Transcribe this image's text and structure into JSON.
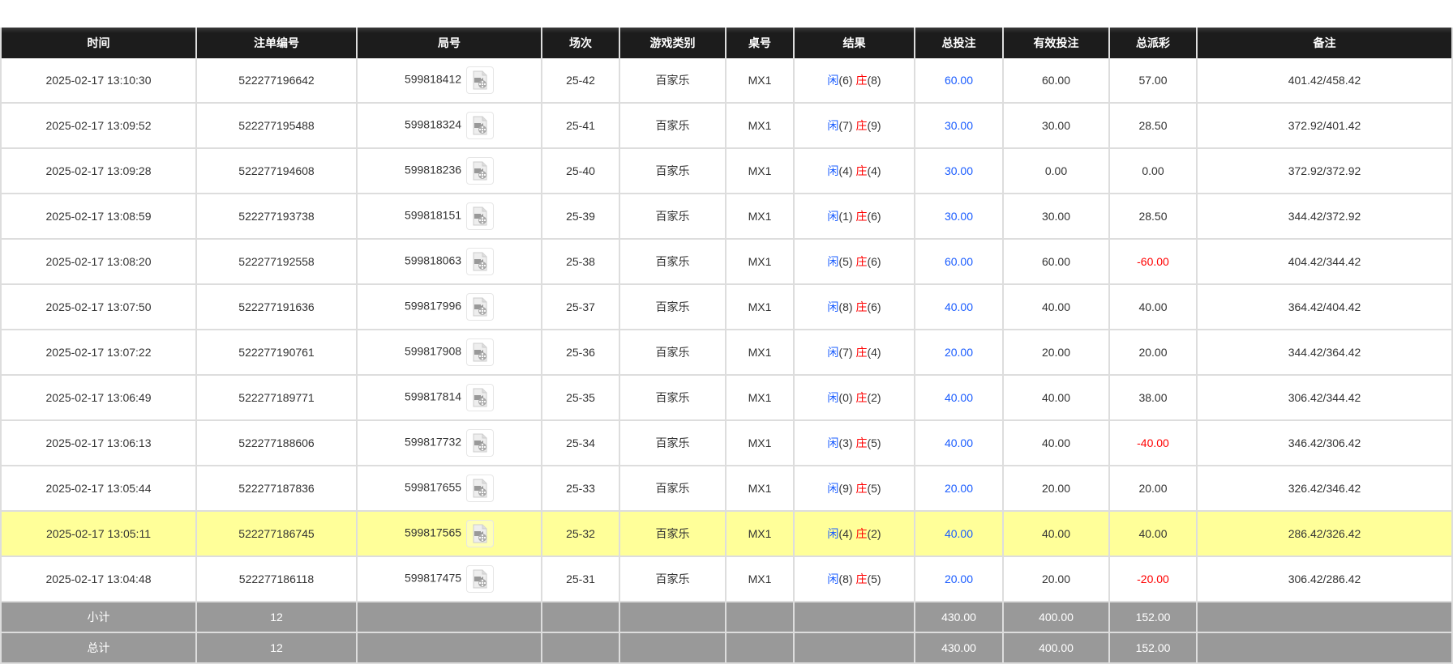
{
  "headers": [
    "时间",
    "注单编号",
    "局号",
    "场次",
    "游戏类别",
    "桌号",
    "结果",
    "总投注",
    "有效投注",
    "总派彩",
    "备注"
  ],
  "colors": {
    "blue": "#1a5cff",
    "red": "#ff0000",
    "highlight": "#ffff99",
    "summary": "#999999",
    "header": "#1c1c1c"
  },
  "result_labels": {
    "player": "闲",
    "banker": "庄"
  },
  "rows": [
    {
      "time": "2025-02-17 13:10:30",
      "bet_id": "522277196642",
      "round": "599818412",
      "shoe": "25-42",
      "game": "百家乐",
      "table": "MX1",
      "p": "(6)",
      "b": "(8)",
      "total": "60.00",
      "valid": "60.00",
      "payout": "57.00",
      "payout_neg": false,
      "note": "401.42/458.42"
    },
    {
      "time": "2025-02-17 13:09:52",
      "bet_id": "522277195488",
      "round": "599818324",
      "shoe": "25-41",
      "game": "百家乐",
      "table": "MX1",
      "p": "(7)",
      "b": "(9)",
      "total": "30.00",
      "valid": "30.00",
      "payout": "28.50",
      "payout_neg": false,
      "note": "372.92/401.42"
    },
    {
      "time": "2025-02-17 13:09:28",
      "bet_id": "522277194608",
      "round": "599818236",
      "shoe": "25-40",
      "game": "百家乐",
      "table": "MX1",
      "p": "(4)",
      "b": "(4)",
      "total": "30.00",
      "valid": "0.00",
      "payout": "0.00",
      "payout_neg": false,
      "note": "372.92/372.92"
    },
    {
      "time": "2025-02-17 13:08:59",
      "bet_id": "522277193738",
      "round": "599818151",
      "shoe": "25-39",
      "game": "百家乐",
      "table": "MX1",
      "p": "(1)",
      "b": "(6)",
      "total": "30.00",
      "valid": "30.00",
      "payout": "28.50",
      "payout_neg": false,
      "note": "344.42/372.92"
    },
    {
      "time": "2025-02-17 13:08:20",
      "bet_id": "522277192558",
      "round": "599818063",
      "shoe": "25-38",
      "game": "百家乐",
      "table": "MX1",
      "p": "(5)",
      "b": "(6)",
      "total": "60.00",
      "valid": "60.00",
      "payout": "-60.00",
      "payout_neg": true,
      "note": "404.42/344.42"
    },
    {
      "time": "2025-02-17 13:07:50",
      "bet_id": "522277191636",
      "round": "599817996",
      "shoe": "25-37",
      "game": "百家乐",
      "table": "MX1",
      "p": "(8)",
      "b": "(6)",
      "total": "40.00",
      "valid": "40.00",
      "payout": "40.00",
      "payout_neg": false,
      "note": "364.42/404.42"
    },
    {
      "time": "2025-02-17 13:07:22",
      "bet_id": "522277190761",
      "round": "599817908",
      "shoe": "25-36",
      "game": "百家乐",
      "table": "MX1",
      "p": "(7)",
      "b": "(4)",
      "total": "20.00",
      "valid": "20.00",
      "payout": "20.00",
      "payout_neg": false,
      "note": "344.42/364.42"
    },
    {
      "time": "2025-02-17 13:06:49",
      "bet_id": "522277189771",
      "round": "599817814",
      "shoe": "25-35",
      "game": "百家乐",
      "table": "MX1",
      "p": "(0)",
      "b": "(2)",
      "total": "40.00",
      "valid": "40.00",
      "payout": "38.00",
      "payout_neg": false,
      "note": "306.42/344.42"
    },
    {
      "time": "2025-02-17 13:06:13",
      "bet_id": "522277188606",
      "round": "599817732",
      "shoe": "25-34",
      "game": "百家乐",
      "table": "MX1",
      "p": "(3)",
      "b": "(5)",
      "total": "40.00",
      "valid": "40.00",
      "payout": "-40.00",
      "payout_neg": true,
      "note": "346.42/306.42"
    },
    {
      "time": "2025-02-17 13:05:44",
      "bet_id": "522277187836",
      "round": "599817655",
      "shoe": "25-33",
      "game": "百家乐",
      "table": "MX1",
      "p": "(9)",
      "b": "(5)",
      "total": "20.00",
      "valid": "20.00",
      "payout": "20.00",
      "payout_neg": false,
      "note": "326.42/346.42"
    },
    {
      "time": "2025-02-17 13:05:11",
      "bet_id": "522277186745",
      "round": "599817565",
      "shoe": "25-32",
      "game": "百家乐",
      "table": "MX1",
      "p": "(4)",
      "b": "(2)",
      "total": "40.00",
      "valid": "40.00",
      "payout": "40.00",
      "payout_neg": false,
      "note": "286.42/326.42",
      "highlighted": true
    },
    {
      "time": "2025-02-17 13:04:48",
      "bet_id": "522277186118",
      "round": "599817475",
      "shoe": "25-31",
      "game": "百家乐",
      "table": "MX1",
      "p": "(8)",
      "b": "(5)",
      "total": "20.00",
      "valid": "20.00",
      "payout": "-20.00",
      "payout_neg": true,
      "note": "306.42/286.42"
    }
  ],
  "summary": [
    {
      "label": "小计",
      "count": "12",
      "total": "430.00",
      "valid": "400.00",
      "payout": "152.00"
    },
    {
      "label": "总计",
      "count": "12",
      "total": "430.00",
      "valid": "400.00",
      "payout": "152.00"
    }
  ]
}
